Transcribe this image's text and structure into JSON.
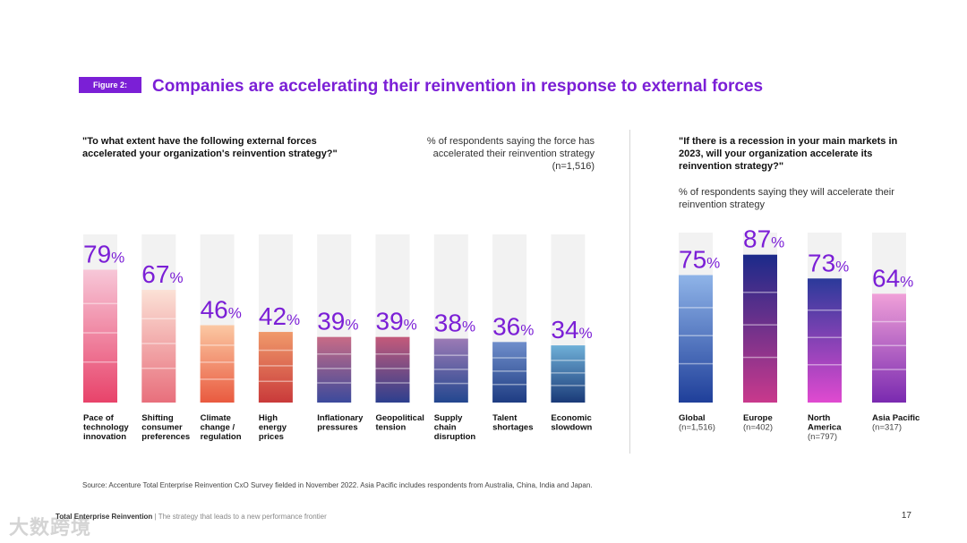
{
  "figure": {
    "badge": "Figure 2:",
    "title": "Companies are accelerating their reinvention in response to external forces"
  },
  "left_panel": {
    "question": "\"To what extent have the following external forces accelerated your organization's reinvention strategy?\"",
    "note": "% of respondents saying the force has accelerated their reinvention strategy (n=1,516)"
  },
  "right_panel": {
    "question": "\"If there is a recession in your main markets in 2023, will your organization accelerate its reinvention strategy?\"",
    "note": "% of respondents saying they will accelerate their reinvention strategy"
  },
  "chart_data": [
    {
      "type": "bar",
      "categories": [
        [
          "Pace of",
          "technology",
          "innovation"
        ],
        [
          "Shifting",
          "consumer",
          "preferences"
        ],
        [
          "Climate",
          "change /",
          "regulation"
        ],
        [
          "High",
          "energy",
          "prices"
        ],
        [
          "Inflationary",
          "pressures"
        ],
        [
          "Geopolitical",
          "tension"
        ],
        [
          "Supply",
          "chain",
          "disruption"
        ],
        [
          "Talent",
          "shortages"
        ],
        [
          "Economic",
          "slowdown"
        ]
      ],
      "values": [
        79,
        67,
        46,
        42,
        39,
        39,
        38,
        36,
        34
      ],
      "unit": "%",
      "ylim": [
        0,
        100
      ],
      "colors": {
        "value_label": "#7b1fd6",
        "track": "#f2f2f2",
        "bar_gradients": [
          [
            "#f7c7d8",
            "#e8436a"
          ],
          [
            "#fbe1d6",
            "#e86f7c"
          ],
          [
            "#fbc8a3",
            "#e95a3f"
          ],
          [
            "#f09a6b",
            "#c93a3a"
          ],
          [
            "#c86b86",
            "#3b4a9c"
          ],
          [
            "#c45a7a",
            "#2c3f8e"
          ],
          [
            "#9b7ab5",
            "#23478f"
          ],
          [
            "#6f8ecb",
            "#1e3c82"
          ],
          [
            "#6fb0d8",
            "#1a3a78"
          ]
        ]
      }
    },
    {
      "type": "bar",
      "categories": [
        {
          "label": "Global",
          "n": "(n=1,516)"
        },
        {
          "label": "Europe",
          "n": "(n=402)"
        },
        {
          "label": [
            "North",
            "America"
          ],
          "n": "(n=797)"
        },
        {
          "label": "Asia Pacific",
          "n": "(n=317)"
        }
      ],
      "values": [
        75,
        87,
        73,
        64
      ],
      "unit": "%",
      "ylim": [
        0,
        100
      ],
      "colors": {
        "value_label": "#7b1fd6",
        "track": "#f2f2f2",
        "bar_gradients": [
          [
            "#8fb4e8",
            "#1f3f9a"
          ],
          [
            "#1b2a8a",
            "#c9398c"
          ],
          [
            "#2b3a9a",
            "#e04ad0"
          ],
          [
            "#f0a0d8",
            "#7a2ab0"
          ]
        ]
      }
    }
  ],
  "source": "Source: Accenture Total Enterprise Reinvention CxO Survey fielded in November 2022. Asia Pacific includes respondents from Australia, China, India and Japan.",
  "footer": {
    "brand": "Total Enterprise Reinvention",
    "tagline": " | The strategy that leads to a new performance frontier",
    "page": "17"
  },
  "watermark": "大数跨境"
}
